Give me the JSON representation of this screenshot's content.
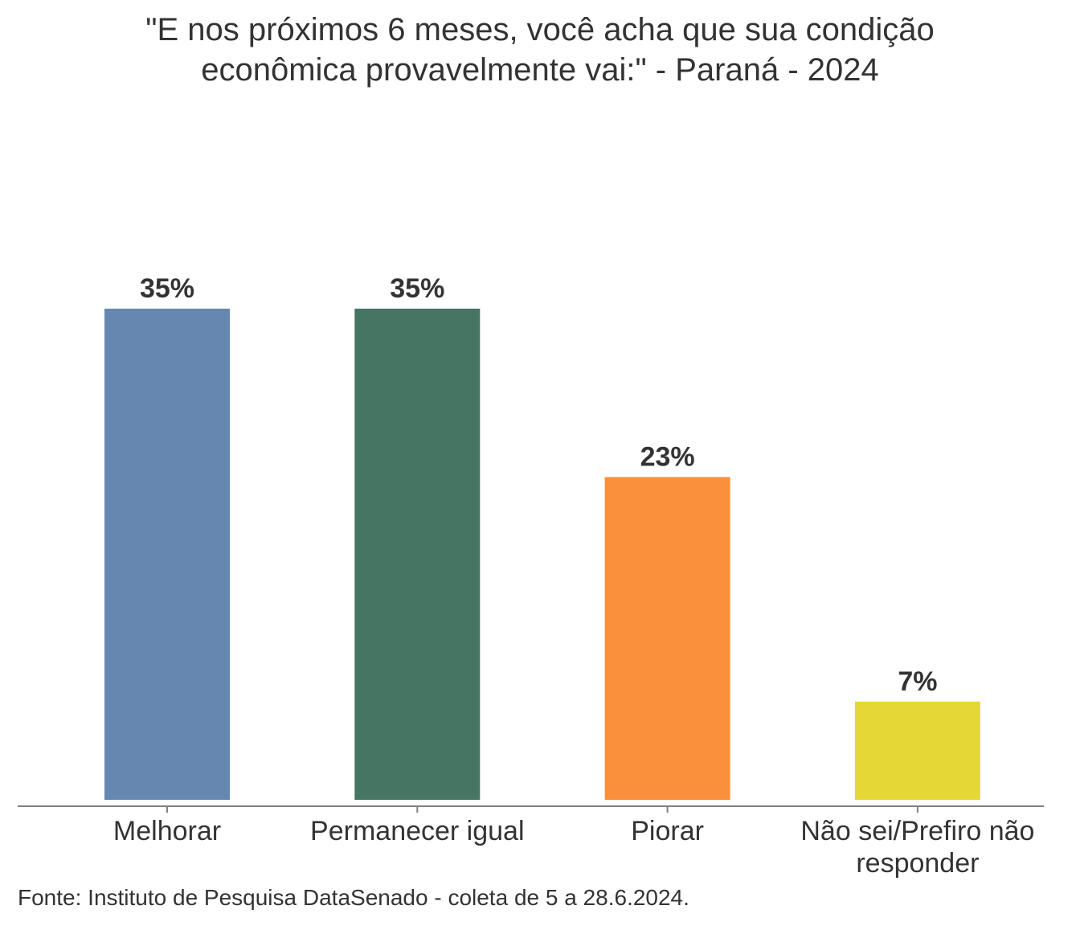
{
  "chart_data": {
    "type": "bar",
    "title_lines": [
      "\"E nos próximos 6 meses, você acha que sua condição",
      "econômica provavelmente vai:\" - Paraná - 2024"
    ],
    "categories": [
      [
        "Melhorar"
      ],
      [
        "Permanecer igual"
      ],
      [
        "Piorar"
      ],
      [
        "Não sei/Prefiro não",
        "responder"
      ]
    ],
    "values": [
      35,
      35,
      23,
      7
    ],
    "value_labels": [
      "35%",
      "35%",
      "23%",
      "7%"
    ],
    "colors": [
      "#6688b0",
      "#457563",
      "#fa903c",
      "#e5d735"
    ],
    "ylim": [
      0,
      40
    ],
    "grid": false,
    "legend": "none",
    "source": "Fonte: Instituto de Pesquisa DataSenado - coleta de 5 a 28.6.2024."
  }
}
